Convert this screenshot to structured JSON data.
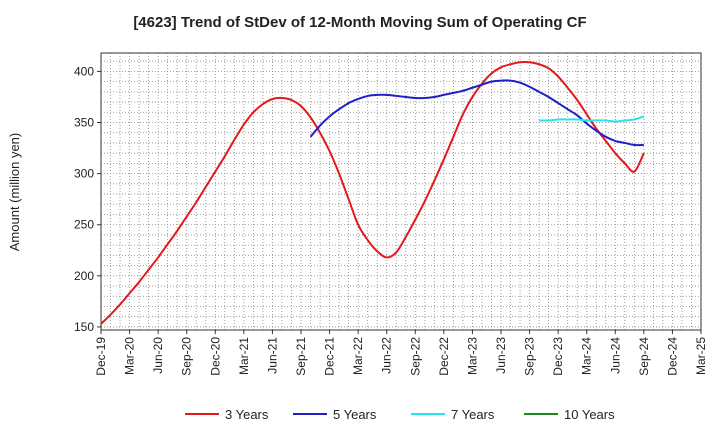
{
  "chart_data": {
    "type": "line",
    "title": "[4623]  Trend of StDev of 12-Month Moving Sum of Operating CF",
    "xlabel": "",
    "ylabel": "Amount (million yen)",
    "ylim": [
      147,
      418
    ],
    "yticks": [
      150,
      200,
      250,
      300,
      350,
      400
    ],
    "x_categories": [
      "Dec-19",
      "Mar-20",
      "Jun-20",
      "Sep-20",
      "Dec-20",
      "Mar-21",
      "Jun-21",
      "Sep-21",
      "Dec-21",
      "Mar-22",
      "Jun-22",
      "Sep-22",
      "Dec-22",
      "Mar-23",
      "Jun-23",
      "Sep-23",
      "Dec-23",
      "Mar-24",
      "Jun-24",
      "Sep-24",
      "Dec-24",
      "Mar-25"
    ],
    "grid": true,
    "legend_position": "bottom",
    "series": [
      {
        "name": "3 Years",
        "color": "#e31a1c",
        "x": [
          "Dec-19",
          "Jan-20",
          "Feb-20",
          "Mar-20",
          "Apr-20",
          "May-20",
          "Jun-20",
          "Jul-20",
          "Aug-20",
          "Sep-20",
          "Oct-20",
          "Nov-20",
          "Dec-20",
          "Jan-21",
          "Feb-21",
          "Mar-21",
          "Apr-21",
          "May-21",
          "Jun-21",
          "Jul-21",
          "Aug-21",
          "Sep-21",
          "Oct-21",
          "Nov-21",
          "Dec-21",
          "Jan-22",
          "Feb-22",
          "Mar-22",
          "Apr-22",
          "May-22",
          "Jun-22",
          "Jul-22",
          "Aug-22",
          "Sep-22",
          "Oct-22",
          "Nov-22",
          "Dec-22",
          "Jan-23",
          "Feb-23",
          "Mar-23",
          "Apr-23",
          "May-23",
          "Jun-23",
          "Jul-23",
          "Aug-23",
          "Sep-23",
          "Oct-23",
          "Nov-23",
          "Dec-23",
          "Jan-24",
          "Feb-24",
          "Mar-24",
          "Apr-24",
          "May-24",
          "Jun-24",
          "Jul-24",
          "Aug-24",
          "Sep-24"
        ],
        "values": [
          153,
          162,
          172,
          183,
          194,
          206,
          218,
          231,
          244,
          258,
          272,
          287,
          302,
          317,
          333,
          348,
          360,
          368,
          373,
          374,
          372,
          366,
          355,
          340,
          322,
          300,
          275,
          250,
          235,
          224,
          218,
          223,
          238,
          255,
          273,
          293,
          314,
          336,
          358,
          375,
          388,
          398,
          404,
          407,
          409,
          409,
          407,
          403,
          395,
          384,
          372,
          358,
          344,
          332,
          320,
          310,
          302,
          320
        ]
      },
      {
        "name": "5 Years",
        "color": "#1f1fc8",
        "x": [
          "Oct-21",
          "Nov-21",
          "Dec-21",
          "Jan-22",
          "Feb-22",
          "Mar-22",
          "Apr-22",
          "May-22",
          "Jun-22",
          "Jul-22",
          "Aug-22",
          "Sep-22",
          "Oct-22",
          "Nov-22",
          "Dec-22",
          "Jan-23",
          "Feb-23",
          "Mar-23",
          "Apr-23",
          "May-23",
          "Jun-23",
          "Jul-23",
          "Aug-23",
          "Sep-23",
          "Oct-23",
          "Nov-23",
          "Dec-23",
          "Jan-24",
          "Feb-24",
          "Mar-24",
          "Apr-24",
          "May-24",
          "Jun-24",
          "Jul-24",
          "Aug-24",
          "Sep-24"
        ],
        "values": [
          336,
          347,
          356,
          363,
          369,
          373,
          376,
          377,
          377,
          376,
          375,
          374,
          374,
          375,
          377,
          379,
          381,
          384,
          387,
          390,
          391,
          391,
          389,
          385,
          380,
          375,
          369,
          363,
          357,
          349,
          342,
          336,
          332,
          330,
          328,
          328
        ]
      },
      {
        "name": "7 Years",
        "color": "#22e5ef",
        "x": [
          "Oct-23",
          "Nov-23",
          "Dec-23",
          "Jan-24",
          "Feb-24",
          "Mar-24",
          "Apr-24",
          "May-24",
          "Jun-24",
          "Jul-24",
          "Aug-24",
          "Sep-24"
        ],
        "values": [
          352,
          352,
          353,
          353,
          353,
          352,
          352,
          352,
          351,
          352,
          353,
          356
        ]
      },
      {
        "name": "10 Years",
        "color": "#1a8a1a",
        "x": [],
        "values": []
      }
    ]
  }
}
